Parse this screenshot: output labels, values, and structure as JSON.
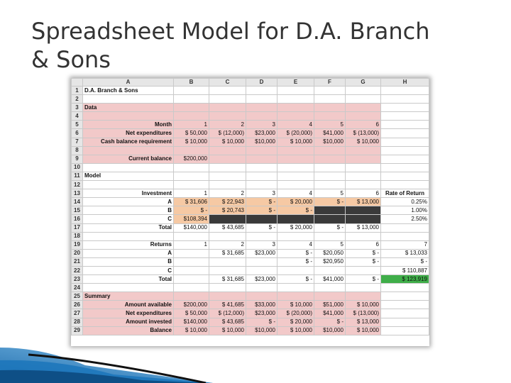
{
  "title": "Spreadsheet Model for D.A. Branch\n& Sons",
  "sheet": {
    "columns": [
      "",
      "A",
      "B",
      "C",
      "D",
      "E",
      "F",
      "G",
      "H"
    ],
    "rows": [
      {
        "n": "1",
        "cells": [
          {
            "t": "D.A. Branch & Sons",
            "cls": "bold"
          },
          {
            "t": ""
          },
          {
            "t": ""
          },
          {
            "t": ""
          },
          {
            "t": ""
          },
          {
            "t": ""
          },
          {
            "t": ""
          },
          {
            "t": ""
          }
        ]
      },
      {
        "n": "2",
        "cells": [
          {
            "t": ""
          },
          {
            "t": ""
          },
          {
            "t": ""
          },
          {
            "t": ""
          },
          {
            "t": ""
          },
          {
            "t": ""
          },
          {
            "t": ""
          },
          {
            "t": ""
          }
        ]
      },
      {
        "n": "3",
        "cells": [
          {
            "t": "Data",
            "cls": "bold pink"
          },
          {
            "t": "",
            "cls": "pink"
          },
          {
            "t": "",
            "cls": "pink"
          },
          {
            "t": "",
            "cls": "pink"
          },
          {
            "t": "",
            "cls": "pink"
          },
          {
            "t": "",
            "cls": "pink"
          },
          {
            "t": "",
            "cls": "pink"
          },
          {
            "t": ""
          }
        ]
      },
      {
        "n": "4",
        "cells": [
          {
            "t": "",
            "cls": "pink"
          },
          {
            "t": "",
            "cls": "pink"
          },
          {
            "t": "",
            "cls": "pink"
          },
          {
            "t": "",
            "cls": "pink"
          },
          {
            "t": "",
            "cls": "pink"
          },
          {
            "t": "",
            "cls": "pink"
          },
          {
            "t": "",
            "cls": "pink"
          },
          {
            "t": ""
          }
        ]
      },
      {
        "n": "5",
        "cells": [
          {
            "t": "Month",
            "cls": "bold r pink"
          },
          {
            "t": "1",
            "cls": "r pink"
          },
          {
            "t": "2",
            "cls": "r pink"
          },
          {
            "t": "3",
            "cls": "r pink"
          },
          {
            "t": "4",
            "cls": "r pink"
          },
          {
            "t": "5",
            "cls": "r pink"
          },
          {
            "t": "6",
            "cls": "r pink"
          },
          {
            "t": ""
          }
        ]
      },
      {
        "n": "6",
        "cells": [
          {
            "t": "Net expenditures",
            "cls": "bold r pink"
          },
          {
            "t": "$  50,000",
            "cls": "r pink"
          },
          {
            "t": "$ (12,000)",
            "cls": "r pink"
          },
          {
            "t": "$23,000",
            "cls": "r pink"
          },
          {
            "t": "$ (20,000)",
            "cls": "r pink"
          },
          {
            "t": "$41,000",
            "cls": "r pink"
          },
          {
            "t": "$ (13,000)",
            "cls": "r pink"
          },
          {
            "t": ""
          }
        ]
      },
      {
        "n": "7",
        "cells": [
          {
            "t": "Cash balance requirement",
            "cls": "bold r pink"
          },
          {
            "t": "$  10,000",
            "cls": "r pink"
          },
          {
            "t": "$  10,000",
            "cls": "r pink"
          },
          {
            "t": "$10,000",
            "cls": "r pink"
          },
          {
            "t": "$  10,000",
            "cls": "r pink"
          },
          {
            "t": "$10,000",
            "cls": "r pink"
          },
          {
            "t": "$  10,000",
            "cls": "r pink"
          },
          {
            "t": ""
          }
        ]
      },
      {
        "n": "8",
        "cells": [
          {
            "t": "",
            "cls": "pink"
          },
          {
            "t": "",
            "cls": "pink"
          },
          {
            "t": "",
            "cls": "pink"
          },
          {
            "t": "",
            "cls": "pink"
          },
          {
            "t": "",
            "cls": "pink"
          },
          {
            "t": "",
            "cls": "pink"
          },
          {
            "t": "",
            "cls": "pink"
          },
          {
            "t": ""
          }
        ]
      },
      {
        "n": "9",
        "cells": [
          {
            "t": "Current balance",
            "cls": "bold r pink"
          },
          {
            "t": "$200,000",
            "cls": "r pink"
          },
          {
            "t": "",
            "cls": "pink"
          },
          {
            "t": "",
            "cls": "pink"
          },
          {
            "t": "",
            "cls": "pink"
          },
          {
            "t": "",
            "cls": "pink"
          },
          {
            "t": "",
            "cls": "pink"
          },
          {
            "t": ""
          }
        ]
      },
      {
        "n": "10",
        "cells": [
          {
            "t": ""
          },
          {
            "t": ""
          },
          {
            "t": ""
          },
          {
            "t": ""
          },
          {
            "t": ""
          },
          {
            "t": ""
          },
          {
            "t": ""
          },
          {
            "t": ""
          }
        ]
      },
      {
        "n": "11",
        "cells": [
          {
            "t": "Model",
            "cls": "bold"
          },
          {
            "t": ""
          },
          {
            "t": ""
          },
          {
            "t": ""
          },
          {
            "t": ""
          },
          {
            "t": ""
          },
          {
            "t": ""
          },
          {
            "t": ""
          }
        ]
      },
      {
        "n": "12",
        "cells": [
          {
            "t": ""
          },
          {
            "t": ""
          },
          {
            "t": ""
          },
          {
            "t": ""
          },
          {
            "t": ""
          },
          {
            "t": ""
          },
          {
            "t": ""
          },
          {
            "t": ""
          }
        ]
      },
      {
        "n": "13",
        "cells": [
          {
            "t": "Investment",
            "cls": "bold r"
          },
          {
            "t": "1",
            "cls": "r"
          },
          {
            "t": "2",
            "cls": "r"
          },
          {
            "t": "3",
            "cls": "r"
          },
          {
            "t": "4",
            "cls": "r"
          },
          {
            "t": "5",
            "cls": "r"
          },
          {
            "t": "6",
            "cls": "r"
          },
          {
            "t": "Rate of Return",
            "cls": "bold c"
          }
        ]
      },
      {
        "n": "14",
        "cells": [
          {
            "t": "A",
            "cls": "bold r"
          },
          {
            "t": "$  31,606",
            "cls": "r orange"
          },
          {
            "t": "$  22,943",
            "cls": "r orange"
          },
          {
            "t": "$      -",
            "cls": "r orange"
          },
          {
            "t": "$  20,000",
            "cls": "r orange"
          },
          {
            "t": "$      -",
            "cls": "r orange"
          },
          {
            "t": "$  13,000",
            "cls": "r orange"
          },
          {
            "t": "0.25%",
            "cls": "r"
          }
        ]
      },
      {
        "n": "15",
        "cells": [
          {
            "t": "B",
            "cls": "bold r"
          },
          {
            "t": "$      -",
            "cls": "r orange"
          },
          {
            "t": "$  20,743",
            "cls": "r orange"
          },
          {
            "t": "$      -",
            "cls": "r orange"
          },
          {
            "t": "$      -",
            "cls": "r orange"
          },
          {
            "t": "",
            "cls": "dark"
          },
          {
            "t": "",
            "cls": "dark"
          },
          {
            "t": "1.00%",
            "cls": "r"
          }
        ]
      },
      {
        "n": "16",
        "cells": [
          {
            "t": "C",
            "cls": "bold r"
          },
          {
            "t": "$108,394",
            "cls": "r orange"
          },
          {
            "t": "",
            "cls": "dark"
          },
          {
            "t": "",
            "cls": "dark"
          },
          {
            "t": "",
            "cls": "dark"
          },
          {
            "t": "",
            "cls": "dark"
          },
          {
            "t": "",
            "cls": "dark"
          },
          {
            "t": "2.50%",
            "cls": "r"
          }
        ]
      },
      {
        "n": "17",
        "cells": [
          {
            "t": "Total",
            "cls": "bold r"
          },
          {
            "t": "$140,000",
            "cls": "r"
          },
          {
            "t": "$  43,685",
            "cls": "r"
          },
          {
            "t": "$      -",
            "cls": "r"
          },
          {
            "t": "$  20,000",
            "cls": "r"
          },
          {
            "t": "$      -",
            "cls": "r"
          },
          {
            "t": "$  13,000",
            "cls": "r"
          },
          {
            "t": ""
          }
        ]
      },
      {
        "n": "18",
        "cells": [
          {
            "t": ""
          },
          {
            "t": ""
          },
          {
            "t": ""
          },
          {
            "t": ""
          },
          {
            "t": ""
          },
          {
            "t": ""
          },
          {
            "t": ""
          },
          {
            "t": ""
          }
        ]
      },
      {
        "n": "19",
        "cells": [
          {
            "t": "Returns",
            "cls": "bold r"
          },
          {
            "t": "1",
            "cls": "r"
          },
          {
            "t": "2",
            "cls": "r"
          },
          {
            "t": "3",
            "cls": "r"
          },
          {
            "t": "4",
            "cls": "r"
          },
          {
            "t": "5",
            "cls": "r"
          },
          {
            "t": "6",
            "cls": "r"
          },
          {
            "t": "7",
            "cls": "r"
          }
        ]
      },
      {
        "n": "20",
        "cells": [
          {
            "t": "A",
            "cls": "bold r"
          },
          {
            "t": ""
          },
          {
            "t": "$  31,685",
            "cls": "r"
          },
          {
            "t": "$23,000",
            "cls": "r"
          },
          {
            "t": "$      -",
            "cls": "r"
          },
          {
            "t": "$20,050",
            "cls": "r"
          },
          {
            "t": "$      -",
            "cls": "r"
          },
          {
            "t": "$         13,033",
            "cls": "r"
          }
        ]
      },
      {
        "n": "21",
        "cells": [
          {
            "t": "B",
            "cls": "bold r"
          },
          {
            "t": ""
          },
          {
            "t": ""
          },
          {
            "t": ""
          },
          {
            "t": "$      -",
            "cls": "r"
          },
          {
            "t": "$20,950",
            "cls": "r"
          },
          {
            "t": "$      -",
            "cls": "r"
          },
          {
            "t": "$              -",
            "cls": "r"
          }
        ]
      },
      {
        "n": "22",
        "cells": [
          {
            "t": "C",
            "cls": "bold r"
          },
          {
            "t": ""
          },
          {
            "t": ""
          },
          {
            "t": ""
          },
          {
            "t": ""
          },
          {
            "t": ""
          },
          {
            "t": ""
          },
          {
            "t": "$       110,887",
            "cls": "r"
          }
        ]
      },
      {
        "n": "23",
        "cells": [
          {
            "t": "Total",
            "cls": "bold r"
          },
          {
            "t": ""
          },
          {
            "t": "$  31,685",
            "cls": "r"
          },
          {
            "t": "$23,000",
            "cls": "r"
          },
          {
            "t": "$      -",
            "cls": "r"
          },
          {
            "t": "$41,000",
            "cls": "r"
          },
          {
            "t": "$      -",
            "cls": "r"
          },
          {
            "t": "$       123,919",
            "cls": "r green"
          }
        ]
      },
      {
        "n": "24",
        "cells": [
          {
            "t": ""
          },
          {
            "t": ""
          },
          {
            "t": ""
          },
          {
            "t": ""
          },
          {
            "t": ""
          },
          {
            "t": ""
          },
          {
            "t": ""
          },
          {
            "t": ""
          }
        ]
      },
      {
        "n": "25",
        "cells": [
          {
            "t": "Summary",
            "cls": "bold pink"
          },
          {
            "t": "",
            "cls": "pink"
          },
          {
            "t": "",
            "cls": "pink"
          },
          {
            "t": "",
            "cls": "pink"
          },
          {
            "t": "",
            "cls": "pink"
          },
          {
            "t": "",
            "cls": "pink"
          },
          {
            "t": "",
            "cls": "pink"
          },
          {
            "t": ""
          }
        ]
      },
      {
        "n": "26",
        "cells": [
          {
            "t": "Amount available",
            "cls": "bold r pink"
          },
          {
            "t": "$200,000",
            "cls": "r pink"
          },
          {
            "t": "$  41,685",
            "cls": "r pink"
          },
          {
            "t": "$33,000",
            "cls": "r pink"
          },
          {
            "t": "$  10,000",
            "cls": "r pink"
          },
          {
            "t": "$51,000",
            "cls": "r pink"
          },
          {
            "t": "$  10,000",
            "cls": "r pink"
          },
          {
            "t": ""
          }
        ]
      },
      {
        "n": "27",
        "cells": [
          {
            "t": "Net expenditures",
            "cls": "bold r pink"
          },
          {
            "t": "$  50,000",
            "cls": "r pink"
          },
          {
            "t": "$ (12,000)",
            "cls": "r pink"
          },
          {
            "t": "$23,000",
            "cls": "r pink"
          },
          {
            "t": "$ (20,000)",
            "cls": "r pink"
          },
          {
            "t": "$41,000",
            "cls": "r pink"
          },
          {
            "t": "$ (13,000)",
            "cls": "r pink"
          },
          {
            "t": ""
          }
        ]
      },
      {
        "n": "28",
        "cells": [
          {
            "t": "Amount invested",
            "cls": "bold r pink"
          },
          {
            "t": "$140,000",
            "cls": "r pink"
          },
          {
            "t": "$  43,685",
            "cls": "r pink"
          },
          {
            "t": "$      -",
            "cls": "r pink"
          },
          {
            "t": "$  20,000",
            "cls": "r pink"
          },
          {
            "t": "$      -",
            "cls": "r pink"
          },
          {
            "t": "$  13,000",
            "cls": "r pink"
          },
          {
            "t": ""
          }
        ]
      },
      {
        "n": "29",
        "cells": [
          {
            "t": "Balance",
            "cls": "bold r pink"
          },
          {
            "t": "$  10,000",
            "cls": "r pink"
          },
          {
            "t": "$  10,000",
            "cls": "r pink"
          },
          {
            "t": "$10,000",
            "cls": "r pink"
          },
          {
            "t": "$  10,000",
            "cls": "r pink"
          },
          {
            "t": "$10,000",
            "cls": "r pink"
          },
          {
            "t": "$  10,000",
            "cls": "r pink"
          },
          {
            "t": ""
          }
        ]
      }
    ]
  }
}
